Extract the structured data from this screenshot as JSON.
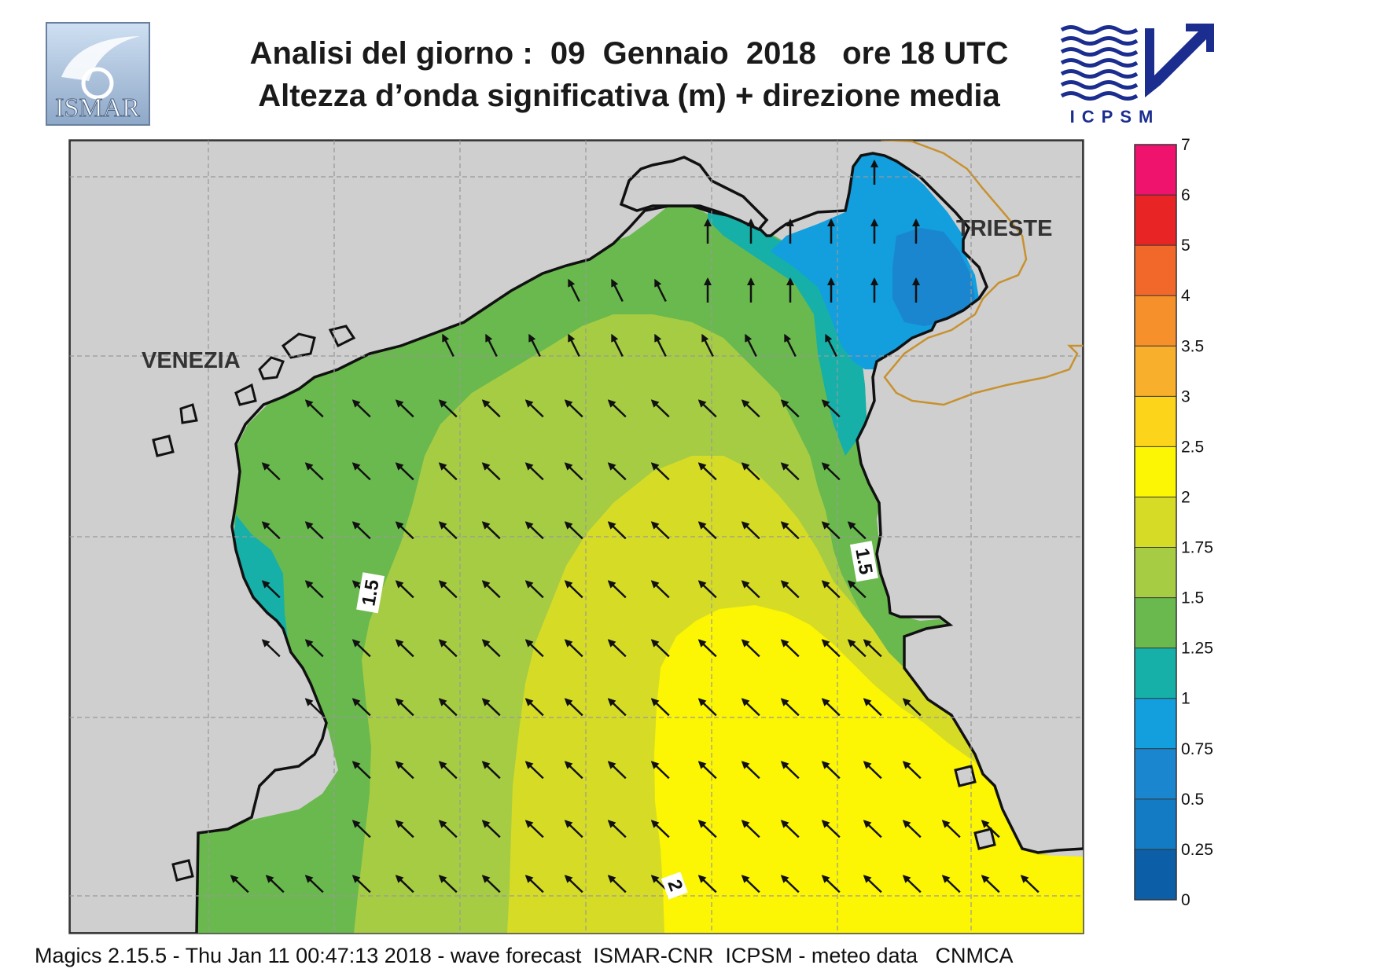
{
  "header": {
    "title_line1": "Analisi del giorno :  09  Gennaio  2018   ore 18 UTC",
    "title_line2": "Altezza d’onda significativa (m) + direzione media"
  },
  "logos": {
    "left": "ISMAR",
    "right": "ICPSM"
  },
  "map": {
    "city_labels": [
      "VENEZIA",
      "TRIESTE"
    ],
    "contour_labels": [
      "1.5",
      "1.5",
      "2"
    ],
    "colors": {
      "land": "#cfcfcf",
      "coast": "#111111",
      "border": "#c8912f"
    }
  },
  "legend": {
    "labels": [
      "7",
      "6",
      "5",
      "4",
      "3.5",
      "3",
      "2.5",
      "2",
      "1.75",
      "1.5",
      "1.25",
      "1",
      "0.75",
      "0.5",
      "0.25",
      "0"
    ],
    "colors": [
      "#f0136e",
      "#e82424",
      "#f2682a",
      "#f5902a",
      "#f8b02c",
      "#fcd41a",
      "#fcf504",
      "#d6dc26",
      "#a6cc44",
      "#6ab94e",
      "#16b0a9",
      "#139ede",
      "#1a86cf",
      "#137bc4",
      "#0c5ea7"
    ]
  },
  "footer": {
    "text": "Magics 2.15.5 - Thu Jan 11 00:47:13 2018 - wave forecast  ISMAR-CNR  ICPSM - meteo data   CNMCA"
  }
}
